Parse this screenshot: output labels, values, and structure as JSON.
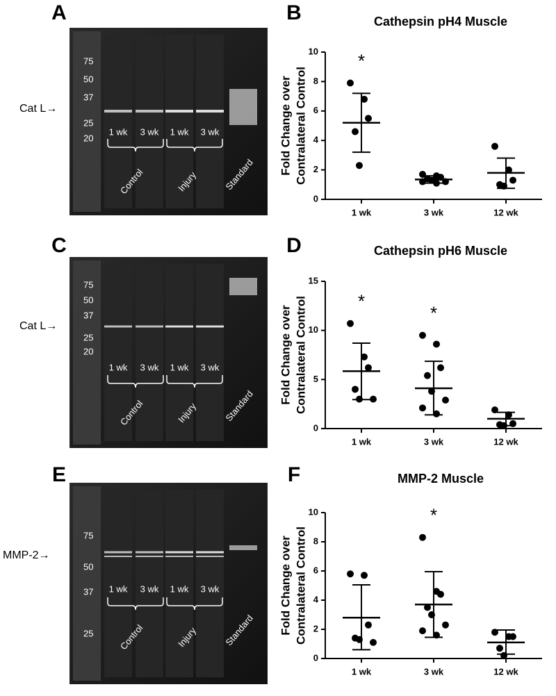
{
  "panel_letters": [
    "A",
    "B",
    "C",
    "D",
    "E",
    "F"
  ],
  "gels": [
    {
      "target": "Cat L→",
      "markers": [
        "75",
        "50",
        "37",
        "25",
        "20"
      ],
      "lanes": [
        "1 wk",
        "3 wk",
        "1 wk",
        "3 wk"
      ],
      "groups": [
        "Control",
        "Injury",
        "Standard"
      ]
    },
    {
      "target": "Cat L→",
      "markers": [
        "75",
        "50",
        "37",
        "25",
        "20"
      ],
      "lanes": [
        "1 wk",
        "3 wk",
        "1 wk",
        "3 wk"
      ],
      "groups": [
        "Control",
        "Injury",
        "Standard"
      ]
    },
    {
      "target": "MMP-2→",
      "markers": [
        "75",
        "50",
        "37",
        "25"
      ],
      "lanes": [
        "1 wk",
        "3 wk",
        "1 wk",
        "3 wk"
      ],
      "groups": [
        "Control",
        "Injury",
        "Standard"
      ]
    }
  ],
  "chart_data": [
    {
      "type": "dot",
      "title": "Cathepsin pH4 Muscle",
      "ylabel": [
        "Fold Change over",
        "Contralateral Control"
      ],
      "categories": [
        "1 wk",
        "3 wk",
        "12 wk"
      ],
      "values": [
        [
          7.9,
          6.8,
          5.5,
          4.6,
          2.3
        ],
        [
          1.7,
          1.6,
          1.5,
          1.4,
          1.3,
          1.2,
          1.2,
          1.1
        ],
        [
          3.6,
          2.0,
          1.3,
          1.0,
          0.9
        ]
      ],
      "means": [
        5.2,
        1.35,
        1.8
      ],
      "err_low": [
        3.2,
        1.1,
        0.75
      ],
      "err_high": [
        7.2,
        1.6,
        2.8
      ],
      "annotations": [
        "*",
        null,
        null
      ],
      "color": "#000000",
      "ylim": [
        0,
        10
      ],
      "yticks": [
        0,
        2,
        4,
        6,
        8,
        10
      ]
    },
    {
      "type": "dot",
      "title": "Cathepsin pH6 Muscle",
      "ylabel": [
        "Fold Change over",
        "Contralateral Control"
      ],
      "categories": [
        "1 wk",
        "3 wk",
        "12 wk"
      ],
      "values": [
        [
          10.7,
          7.3,
          6.2,
          4.0,
          3.0,
          3.0
        ],
        [
          9.5,
          8.6,
          6.2,
          5.4,
          3.8,
          2.9,
          2.1,
          1.5
        ],
        [
          1.9,
          1.4,
          0.5,
          0.4,
          0.3
        ]
      ],
      "means": [
        5.85,
        4.1,
        1.0
      ],
      "err_low": [
        2.95,
        1.4,
        0.3
      ],
      "err_high": [
        8.7,
        6.85,
        1.65
      ],
      "annotations": [
        "*",
        "*",
        null
      ],
      "color": "#000000",
      "ylim": [
        0,
        15
      ],
      "yticks": [
        0,
        5,
        10,
        15
      ]
    },
    {
      "type": "dot",
      "title": "MMP-2 Muscle",
      "ylabel": [
        "Fold Change over",
        "Contralateral Control"
      ],
      "categories": [
        "1 wk",
        "3 wk",
        "12 wk"
      ],
      "values": [
        [
          5.8,
          5.7,
          2.3,
          1.4,
          1.3,
          1.1
        ],
        [
          8.3,
          4.6,
          4.4,
          3.5,
          3.0,
          2.3,
          1.9,
          1.6
        ],
        [
          1.8,
          1.5,
          1.5,
          0.7,
          0.2
        ]
      ],
      "means": [
        2.8,
        3.7,
        1.1
      ],
      "err_low": [
        0.6,
        1.45,
        0.3
      ],
      "err_high": [
        5.05,
        5.95,
        1.95
      ],
      "annotations": [
        null,
        "*",
        null
      ],
      "color": "#000000",
      "ylim": [
        0,
        10
      ],
      "yticks": [
        0,
        2,
        4,
        6,
        8,
        10
      ]
    }
  ]
}
